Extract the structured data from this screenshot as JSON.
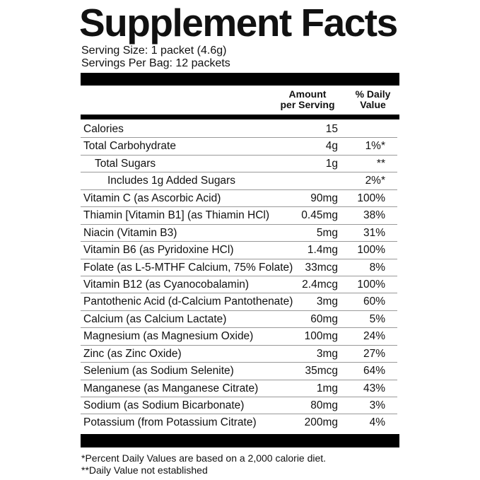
{
  "title": "Supplement Facts",
  "serving_size": "Serving Size: 1 packet (4.6g)",
  "servings_per": "Servings Per Bag: 12 packets",
  "headers": {
    "amount_1": "Amount",
    "amount_2": "per Serving",
    "dv_1": "% Daily",
    "dv_2": "Value"
  },
  "rows": [
    {
      "name": "Calories",
      "amount": "15",
      "dv": "",
      "indent": 0
    },
    {
      "name": "Total Carbohydrate",
      "amount": "4g",
      "dv": "1%*",
      "indent": 0
    },
    {
      "name": "Total Sugars",
      "amount": "1g",
      "dv": "**",
      "indent": 1
    },
    {
      "name": "Includes 1g Added Sugars",
      "amount": "",
      "dv": "2%*",
      "indent": 2
    },
    {
      "name": "Vitamin C (as Ascorbic Acid)",
      "amount": "90mg",
      "dv": "100%",
      "indent": 0
    },
    {
      "name": "Thiamin [Vitamin B1] (as Thiamin HCl)",
      "amount": "0.45mg",
      "dv": "38%",
      "indent": 0
    },
    {
      "name": "Niacin (Vitamin B3)",
      "amount": "5mg",
      "dv": "31%",
      "indent": 0
    },
    {
      "name": "Vitamin B6 (as Pyridoxine HCl)",
      "amount": "1.4mg",
      "dv": "100%",
      "indent": 0
    },
    {
      "name": "Folate (as L-5-MTHF Calcium, 75% Folate)",
      "amount": "33mcg",
      "dv": "8%",
      "indent": 0
    },
    {
      "name": "Vitamin B12 (as Cyanocobalamin)",
      "amount": "2.4mcg",
      "dv": "100%",
      "indent": 0
    },
    {
      "name": "Pantothenic Acid (d-Calcium Pantothenate)",
      "amount": "3mg",
      "dv": "60%",
      "indent": 0
    },
    {
      "name": "Calcium (as Calcium Lactate)",
      "amount": "60mg",
      "dv": "5%",
      "indent": 0
    },
    {
      "name": "Magnesium (as Magnesium Oxide)",
      "amount": "100mg",
      "dv": "24%",
      "indent": 0
    },
    {
      "name": "Zinc (as Zinc Oxide)",
      "amount": "3mg",
      "dv": "27%",
      "indent": 0
    },
    {
      "name": "Selenium (as Sodium Selenite)",
      "amount": "35mcg",
      "dv": "64%",
      "indent": 0
    },
    {
      "name": "Manganese (as Manganese Citrate)",
      "amount": "1mg",
      "dv": "43%",
      "indent": 0
    },
    {
      "name": "Sodium (as Sodium Bicarbonate)",
      "amount": "80mg",
      "dv": "3%",
      "indent": 0
    },
    {
      "name": "Potassium (from Potassium Citrate)",
      "amount": "200mg",
      "dv": "4%",
      "indent": 0
    }
  ],
  "footnotes": [
    "*Percent Daily Values are based on a 2,000 calorie diet.",
    "**Daily Value not established"
  ]
}
